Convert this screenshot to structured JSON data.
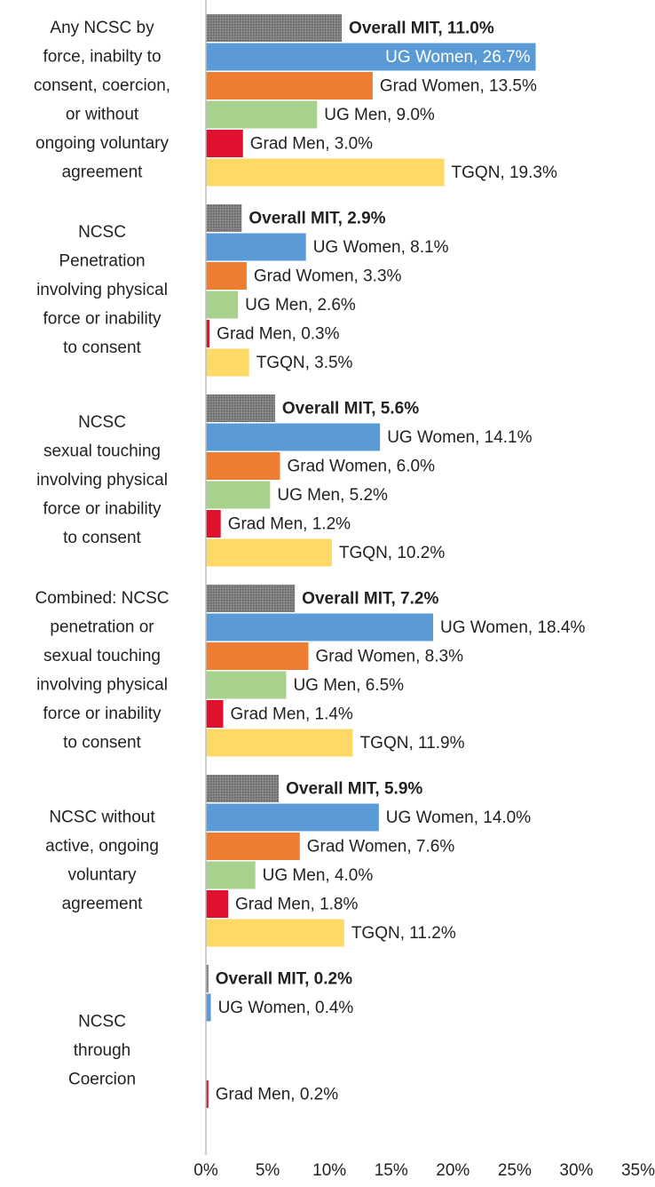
{
  "chart_data": {
    "type": "bar",
    "orientation": "horizontal",
    "categories": [
      "Any NCSC by\nforce, inabilty to\nconsent, coercion,\nor without\nongoing voluntary\nagreement",
      "NCSC\nPenetration\ninvolving physical\nforce or inability\nto consent",
      "NCSC\nsexual touching\ninvolving physical\nforce or inability\nto consent",
      "Combined: NCSC\npenetration or\nsexual touching\ninvolving physical\nforce or inability\nto consent",
      "NCSC without\nactive, ongoing\nvoluntary\nagreement",
      "NCSC\nthrough\nCoercion"
    ],
    "series": [
      {
        "name": "Overall MIT",
        "color": "#7f7f7f",
        "values": [
          11.0,
          2.9,
          5.6,
          7.2,
          5.9,
          0.2
        ],
        "value_labels": [
          "Overall MIT, 11.0%",
          "Overall MIT, 2.9%",
          "Overall MIT, 5.6%",
          "Overall MIT, 7.2%",
          "Overall MIT, 5.9%",
          "Overall MIT, 0.2%"
        ]
      },
      {
        "name": "UG Women",
        "color": "#5b9bd5",
        "values": [
          26.7,
          8.1,
          14.1,
          18.4,
          14.0,
          0.4
        ],
        "value_labels": [
          "UG Women, 26.7%",
          "UG Women, 8.1%",
          "UG Women, 14.1%",
          "UG Women, 18.4%",
          "UG Women, 14.0%",
          "UG Women, 0.4%"
        ]
      },
      {
        "name": "Grad Women",
        "color": "#ed7d31",
        "values": [
          13.5,
          3.3,
          6.0,
          8.3,
          7.6,
          null
        ],
        "value_labels": [
          "Grad Women, 13.5%",
          "Grad Women, 3.3%",
          "Grad Women, 6.0%",
          "Grad Women, 8.3%",
          "Grad Women, 7.6%",
          null
        ]
      },
      {
        "name": "UG Men",
        "color": "#a9d18e",
        "values": [
          9.0,
          2.6,
          5.2,
          6.5,
          4.0,
          null
        ],
        "value_labels": [
          "UG Men, 9.0%",
          "UG Men, 2.6%",
          "UG Men, 5.2%",
          "UG Men, 6.5%",
          "UG Men, 4.0%",
          null
        ]
      },
      {
        "name": "Grad Men",
        "color": "#e0102f",
        "values": [
          3.0,
          0.3,
          1.2,
          1.4,
          1.8,
          0.2
        ],
        "value_labels": [
          "Grad Men, 3.0%",
          "Grad Men, 0.3%",
          "Grad Men, 1.2%",
          "Grad Men, 1.4%",
          "Grad Men, 1.8%",
          "Grad Men, 0.2%"
        ]
      },
      {
        "name": "TGQN",
        "color": "#ffd966",
        "values": [
          19.3,
          3.5,
          10.2,
          11.9,
          11.2,
          null
        ],
        "value_labels": [
          "TGQN, 19.3%",
          "TGQN, 3.5%",
          "TGQN, 10.2%",
          "TGQN, 11.9%",
          "TGQN, 11.2%",
          null
        ]
      }
    ],
    "xlim": [
      0,
      35
    ],
    "xticks": [
      {
        "value": 0,
        "label": "0%"
      },
      {
        "value": 5,
        "label": "5%"
      },
      {
        "value": 10,
        "label": "10%"
      },
      {
        "value": 15,
        "label": "15%"
      },
      {
        "value": 20,
        "label": "20%"
      },
      {
        "value": 25,
        "label": "25%"
      },
      {
        "value": 30,
        "label": "30%"
      },
      {
        "value": 35,
        "label": "35%"
      }
    ],
    "grid": false
  }
}
